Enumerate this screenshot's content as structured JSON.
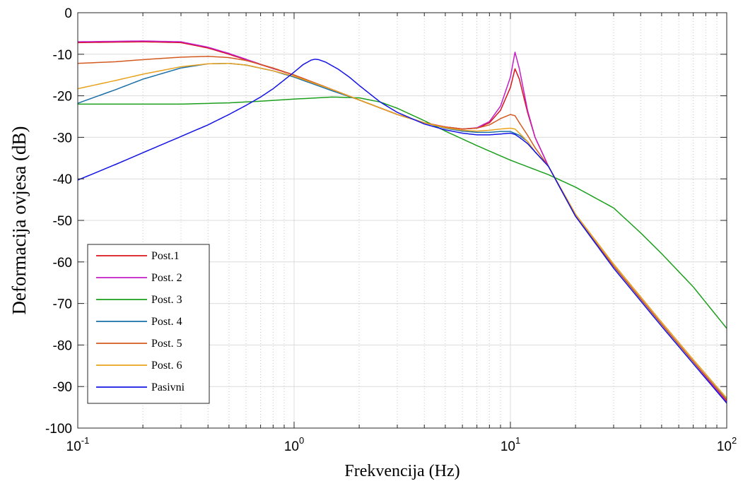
{
  "chart_data": {
    "type": "line",
    "title": "",
    "xlabel": "Frekvencija  (Hz)",
    "ylabel": "Deformacija ovjesa (dB)",
    "xscale": "log",
    "xlim": [
      0.1,
      100
    ],
    "ylim": [
      -100,
      0
    ],
    "grid": true,
    "legend_position": "bottom-left",
    "x_ticks": [
      {
        "base": "10",
        "exp": "-1",
        "value": 0.1
      },
      {
        "base": "10",
        "exp": "0",
        "value": 1
      },
      {
        "base": "10",
        "exp": "1",
        "value": 10
      },
      {
        "base": "10",
        "exp": "2",
        "value": 100
      }
    ],
    "y_ticks": [
      {
        "label": "0",
        "value": 0
      },
      {
        "label": "-10",
        "value": -10
      },
      {
        "label": "-20",
        "value": -20
      },
      {
        "label": "-30",
        "value": -30
      },
      {
        "label": "-40",
        "value": -40
      },
      {
        "label": "-50",
        "value": -50
      },
      {
        "label": "-60",
        "value": -60
      },
      {
        "label": "-70",
        "value": -70
      },
      {
        "label": "-80",
        "value": -80
      },
      {
        "label": "-90",
        "value": -90
      },
      {
        "label": "-100",
        "value": -100
      }
    ],
    "series": [
      {
        "name": "Post.1",
        "color": "#d9141e",
        "points": [
          [
            0.1,
            -7.2
          ],
          [
            0.2,
            -7.0
          ],
          [
            0.3,
            -7.2
          ],
          [
            0.4,
            -8.5
          ],
          [
            0.5,
            -10.0
          ],
          [
            0.7,
            -12.5
          ],
          [
            1.0,
            -15.0
          ],
          [
            1.5,
            -18.5
          ],
          [
            2.0,
            -21.0
          ],
          [
            3.0,
            -24.5
          ],
          [
            4.0,
            -26.5
          ],
          [
            5.0,
            -27.5
          ],
          [
            6.0,
            -28.0
          ],
          [
            7.0,
            -27.8
          ],
          [
            8.0,
            -26.5
          ],
          [
            9.0,
            -23.5
          ],
          [
            10.0,
            -18.0
          ],
          [
            10.5,
            -13.5
          ],
          [
            11.0,
            -16.0
          ],
          [
            12.0,
            -24.0
          ],
          [
            13.0,
            -30.0
          ],
          [
            15.0,
            -37.0
          ],
          [
            20.0,
            -49.0
          ],
          [
            30.0,
            -61.0
          ],
          [
            50.0,
            -75.0
          ],
          [
            70.0,
            -84.0
          ],
          [
            100.0,
            -93.5
          ]
        ]
      },
      {
        "name": "Post. 2",
        "color": "#c41ec4",
        "points": [
          [
            0.1,
            -7.0
          ],
          [
            0.2,
            -6.8
          ],
          [
            0.3,
            -7.0
          ],
          [
            0.4,
            -8.3
          ],
          [
            0.5,
            -9.8
          ],
          [
            0.7,
            -12.4
          ],
          [
            1.0,
            -15.0
          ],
          [
            1.5,
            -18.5
          ],
          [
            2.0,
            -21.0
          ],
          [
            3.0,
            -24.5
          ],
          [
            4.0,
            -26.5
          ],
          [
            5.0,
            -27.5
          ],
          [
            6.0,
            -28.0
          ],
          [
            7.0,
            -27.7
          ],
          [
            8.0,
            -26.2
          ],
          [
            9.0,
            -22.5
          ],
          [
            10.0,
            -15.5
          ],
          [
            10.5,
            -9.5
          ],
          [
            11.0,
            -13.5
          ],
          [
            12.0,
            -23.5
          ],
          [
            13.0,
            -30.0
          ],
          [
            15.0,
            -37.0
          ],
          [
            20.0,
            -49.0
          ],
          [
            30.0,
            -61.0
          ],
          [
            50.0,
            -75.0
          ],
          [
            70.0,
            -84.0
          ],
          [
            100.0,
            -93.8
          ]
        ]
      },
      {
        "name": "Post. 3",
        "color": "#1c9f1c",
        "points": [
          [
            0.1,
            -22.0
          ],
          [
            0.3,
            -22.0
          ],
          [
            0.5,
            -21.7
          ],
          [
            0.7,
            -21.3
          ],
          [
            1.0,
            -20.8
          ],
          [
            1.5,
            -20.3
          ],
          [
            2.0,
            -20.5
          ],
          [
            2.5,
            -21.5
          ],
          [
            3.0,
            -23.0
          ],
          [
            4.0,
            -26.0
          ],
          [
            5.0,
            -28.5
          ],
          [
            7.0,
            -32.0
          ],
          [
            10.0,
            -35.5
          ],
          [
            15.0,
            -39.0
          ],
          [
            20.0,
            -42.0
          ],
          [
            30.0,
            -47.0
          ],
          [
            40.0,
            -53.0
          ],
          [
            50.0,
            -58.0
          ],
          [
            70.0,
            -66.0
          ],
          [
            100.0,
            -76.0
          ]
        ]
      },
      {
        "name": "Post. 4",
        "color": "#1a6fa8",
        "points": [
          [
            0.1,
            -21.8
          ],
          [
            0.15,
            -18.5
          ],
          [
            0.2,
            -16.0
          ],
          [
            0.3,
            -13.3
          ],
          [
            0.4,
            -12.3
          ],
          [
            0.5,
            -12.2
          ],
          [
            0.6,
            -12.6
          ],
          [
            0.8,
            -14.0
          ],
          [
            1.0,
            -15.5
          ],
          [
            1.5,
            -18.8
          ],
          [
            2.0,
            -21.0
          ],
          [
            3.0,
            -24.5
          ],
          [
            4.0,
            -26.5
          ],
          [
            5.0,
            -27.8
          ],
          [
            6.0,
            -28.5
          ],
          [
            7.0,
            -28.8
          ],
          [
            8.0,
            -28.8
          ],
          [
            9.0,
            -28.6
          ],
          [
            10.0,
            -28.6
          ],
          [
            11.0,
            -29.5
          ],
          [
            12.0,
            -31.0
          ],
          [
            13.0,
            -33.5
          ],
          [
            15.0,
            -37.0
          ],
          [
            20.0,
            -49.0
          ],
          [
            30.0,
            -61.0
          ],
          [
            50.0,
            -75.0
          ],
          [
            70.0,
            -84.0
          ],
          [
            100.0,
            -93.2
          ]
        ]
      },
      {
        "name": "Post. 5",
        "color": "#d35a1f",
        "points": [
          [
            0.1,
            -12.2
          ],
          [
            0.15,
            -11.8
          ],
          [
            0.2,
            -11.3
          ],
          [
            0.3,
            -10.7
          ],
          [
            0.4,
            -10.5
          ],
          [
            0.5,
            -10.8
          ],
          [
            0.6,
            -11.5
          ],
          [
            0.8,
            -13.3
          ],
          [
            1.0,
            -15.0
          ],
          [
            1.5,
            -18.5
          ],
          [
            2.0,
            -21.0
          ],
          [
            3.0,
            -24.5
          ],
          [
            4.0,
            -26.5
          ],
          [
            5.0,
            -27.5
          ],
          [
            6.0,
            -28.0
          ],
          [
            7.0,
            -27.8
          ],
          [
            8.0,
            -27.0
          ],
          [
            9.0,
            -25.5
          ],
          [
            10.0,
            -24.5
          ],
          [
            10.5,
            -24.8
          ],
          [
            11.0,
            -26.5
          ],
          [
            12.0,
            -29.5
          ],
          [
            13.0,
            -32.5
          ],
          [
            15.0,
            -37.0
          ],
          [
            20.0,
            -49.0
          ],
          [
            30.0,
            -61.0
          ],
          [
            50.0,
            -75.0
          ],
          [
            70.0,
            -84.0
          ],
          [
            100.0,
            -93.3
          ]
        ]
      },
      {
        "name": "Post. 6",
        "color": "#e8a21d",
        "points": [
          [
            0.1,
            -18.3
          ],
          [
            0.15,
            -16.3
          ],
          [
            0.2,
            -14.8
          ],
          [
            0.3,
            -13.0
          ],
          [
            0.4,
            -12.3
          ],
          [
            0.5,
            -12.2
          ],
          [
            0.6,
            -12.6
          ],
          [
            0.8,
            -14.0
          ],
          [
            1.0,
            -15.3
          ],
          [
            1.5,
            -18.5
          ],
          [
            2.0,
            -21.0
          ],
          [
            3.0,
            -24.5
          ],
          [
            4.0,
            -26.5
          ],
          [
            5.0,
            -27.7
          ],
          [
            6.0,
            -28.3
          ],
          [
            7.0,
            -28.5
          ],
          [
            8.0,
            -28.3
          ],
          [
            9.0,
            -28.0
          ],
          [
            10.0,
            -27.8
          ],
          [
            10.5,
            -28.0
          ],
          [
            11.0,
            -29.0
          ],
          [
            12.0,
            -31.0
          ],
          [
            13.0,
            -33.5
          ],
          [
            15.0,
            -37.0
          ],
          [
            20.0,
            -48.5
          ],
          [
            30.0,
            -60.5
          ],
          [
            50.0,
            -74.5
          ],
          [
            70.0,
            -83.5
          ],
          [
            100.0,
            -92.8
          ]
        ]
      },
      {
        "name": "Pasivni",
        "color": "#1414e6",
        "points": [
          [
            0.1,
            -40.3
          ],
          [
            0.15,
            -36.5
          ],
          [
            0.2,
            -33.7
          ],
          [
            0.3,
            -29.8
          ],
          [
            0.4,
            -27.0
          ],
          [
            0.5,
            -24.5
          ],
          [
            0.6,
            -22.3
          ],
          [
            0.7,
            -20.3
          ],
          [
            0.8,
            -18.3
          ],
          [
            0.9,
            -16.2
          ],
          [
            1.0,
            -14.3
          ],
          [
            1.1,
            -12.5
          ],
          [
            1.2,
            -11.4
          ],
          [
            1.25,
            -11.2
          ],
          [
            1.3,
            -11.3
          ],
          [
            1.4,
            -11.9
          ],
          [
            1.6,
            -13.6
          ],
          [
            1.8,
            -15.5
          ],
          [
            2.0,
            -17.5
          ],
          [
            2.5,
            -21.5
          ],
          [
            3.0,
            -24.0
          ],
          [
            4.0,
            -26.8
          ],
          [
            5.0,
            -28.2
          ],
          [
            6.0,
            -29.0
          ],
          [
            7.0,
            -29.4
          ],
          [
            8.0,
            -29.4
          ],
          [
            9.0,
            -29.2
          ],
          [
            10.0,
            -29.0
          ],
          [
            10.5,
            -29.3
          ],
          [
            11.0,
            -30.0
          ],
          [
            12.0,
            -31.5
          ],
          [
            13.0,
            -33.5
          ],
          [
            15.0,
            -37.0
          ],
          [
            20.0,
            -49.0
          ],
          [
            30.0,
            -61.5
          ],
          [
            50.0,
            -75.5
          ],
          [
            70.0,
            -84.5
          ],
          [
            100.0,
            -94.0
          ]
        ]
      }
    ]
  }
}
